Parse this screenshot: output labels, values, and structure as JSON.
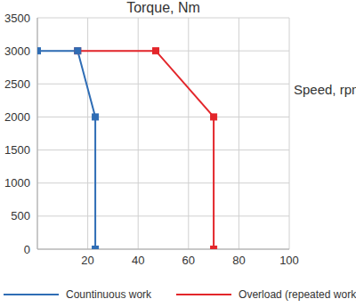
{
  "chart_data": {
    "type": "line",
    "title": "Torque, Nm",
    "y_label": "Speed, rpm",
    "series": [
      {
        "name": "Countinuous work",
        "color": "#2f6db5",
        "x": [
          0,
          16,
          23,
          23
        ],
        "values": [
          3000,
          3000,
          2000,
          0
        ]
      },
      {
        "name": "Overload (repeated work)",
        "color": "#e3262b",
        "x": [
          16,
          47,
          70,
          70
        ],
        "values": [
          3000,
          3000,
          2000,
          0
        ]
      }
    ],
    "xlim": [
      0,
      100
    ],
    "xticks": [
      20,
      40,
      60,
      80,
      100
    ],
    "ylim": [
      0,
      3500
    ],
    "yticks": [
      0,
      500,
      1000,
      1500,
      2000,
      2500,
      3000,
      3500
    ],
    "grid": true,
    "legend": "bottom",
    "marker": "square"
  }
}
